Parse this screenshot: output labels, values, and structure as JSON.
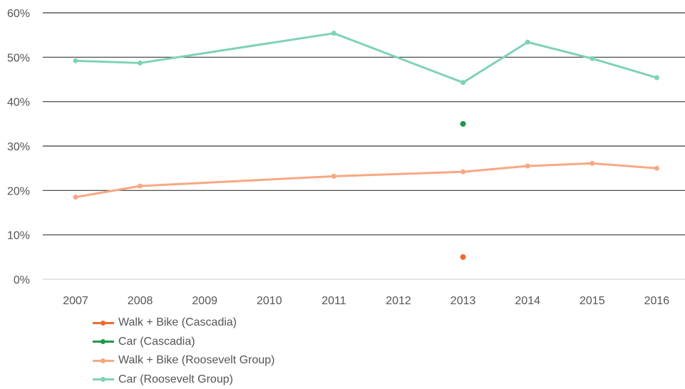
{
  "chart_data": {
    "type": "line",
    "title": "",
    "xlabel": "",
    "ylabel": "",
    "categories": [
      "2007",
      "2008",
      "2009",
      "2010",
      "2011",
      "2012",
      "2013",
      "2014",
      "2015",
      "2016"
    ],
    "ylim": [
      0,
      60
    ],
    "yticks": [
      "0%",
      "10%",
      "20%",
      "30%",
      "40%",
      "50%",
      "60%"
    ],
    "grid": true,
    "legend_position": "bottom-left",
    "series": [
      {
        "name": "Walk + Bike (Cascadia)",
        "color": "#f26a2e",
        "style": "markers",
        "values": [
          null,
          null,
          null,
          null,
          null,
          null,
          5,
          null,
          null,
          null
        ]
      },
      {
        "name": "Car (Cascadia)",
        "color": "#1a9a4b",
        "style": "markers",
        "values": [
          null,
          null,
          null,
          null,
          null,
          null,
          35,
          null,
          null,
          null
        ]
      },
      {
        "name": "Walk + Bike (Roosevelt Group)",
        "color": "#f8a882",
        "style": "line",
        "values": [
          18.5,
          21,
          null,
          null,
          23.2,
          null,
          24.2,
          25.5,
          26.1,
          25
        ]
      },
      {
        "name": "Car (Roosevelt Group)",
        "color": "#7ed3b2",
        "style": "line",
        "values": [
          49.2,
          48.7,
          null,
          null,
          55.4,
          null,
          44.3,
          53.4,
          49.7,
          45.4
        ]
      }
    ]
  }
}
